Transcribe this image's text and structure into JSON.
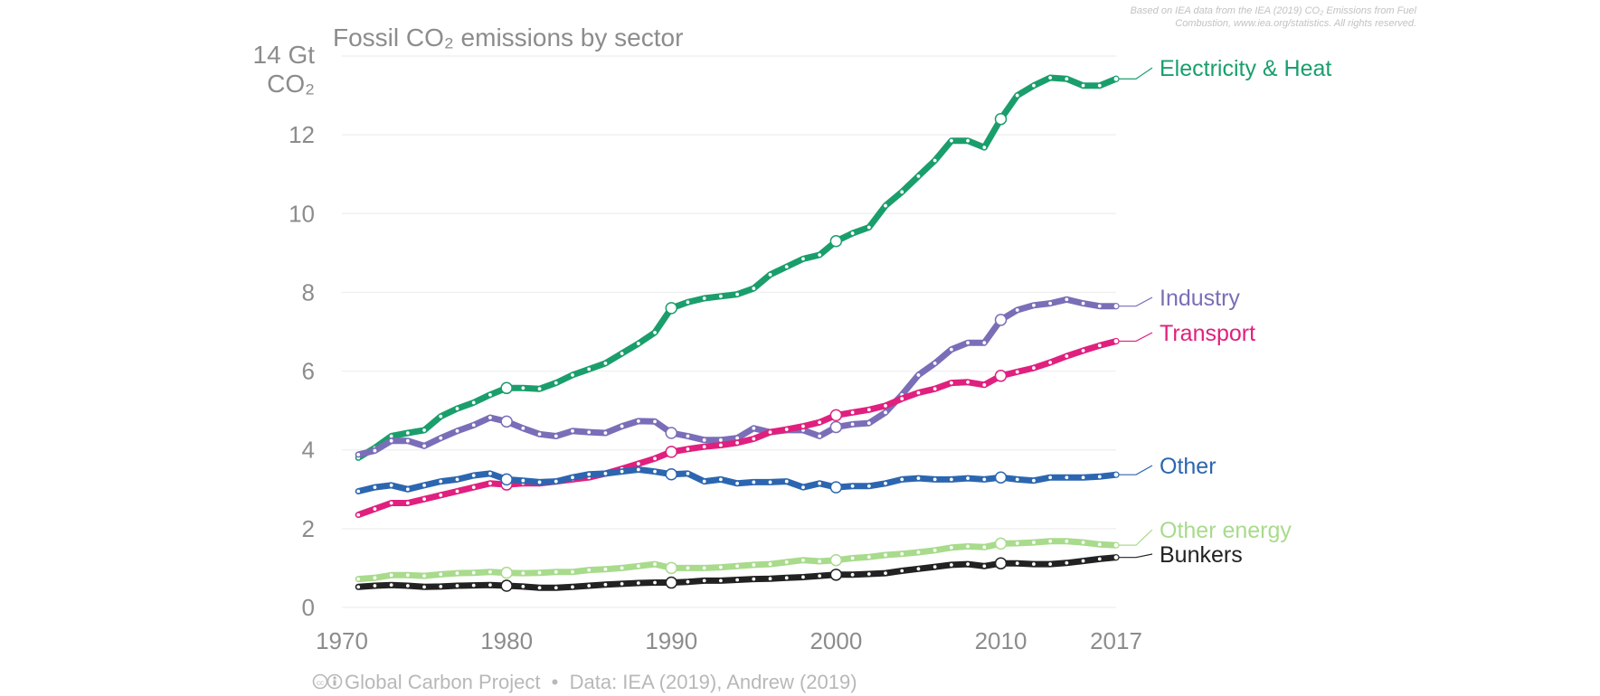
{
  "chart_data": {
    "type": "line",
    "title": "Fossil CO₂ emissions by sector",
    "ylabel_line1": "14 Gt",
    "ylabel_line2": "CO₂",
    "ylim": [
      0,
      14
    ],
    "yticks": [
      0,
      2,
      4,
      6,
      8,
      10,
      12
    ],
    "xlim": [
      1970,
      2017
    ],
    "xticks": [
      1970,
      1980,
      1990,
      2000,
      2010,
      2017
    ],
    "grid": true,
    "legend": "right, inline labels at line ends",
    "x_start": 1971,
    "x_end": 2017,
    "series": [
      {
        "name": "Electricity & Heat",
        "color": "#1a9e6c",
        "values": [
          3.8,
          4.05,
          4.35,
          4.43,
          4.5,
          4.85,
          5.05,
          5.2,
          5.4,
          5.57,
          5.57,
          5.55,
          5.7,
          5.9,
          6.05,
          6.2,
          6.45,
          6.7,
          6.98,
          7.6,
          7.75,
          7.85,
          7.9,
          7.95,
          8.1,
          8.45,
          8.65,
          8.85,
          8.95,
          9.3,
          9.5,
          9.65,
          10.2,
          10.55,
          10.95,
          11.35,
          11.85,
          11.85,
          11.68,
          12.4,
          13.0,
          13.25,
          13.45,
          13.42,
          13.25,
          13.25,
          13.42
        ]
      },
      {
        "name": "Industry",
        "color": "#7a6eb8",
        "values": [
          3.88,
          3.98,
          4.23,
          4.23,
          4.1,
          4.3,
          4.48,
          4.63,
          4.82,
          4.72,
          4.55,
          4.4,
          4.35,
          4.48,
          4.45,
          4.43,
          4.6,
          4.73,
          4.72,
          4.43,
          4.35,
          4.25,
          4.25,
          4.3,
          4.55,
          4.45,
          4.5,
          4.5,
          4.35,
          4.58,
          4.65,
          4.68,
          4.95,
          5.4,
          5.9,
          6.2,
          6.55,
          6.72,
          6.72,
          7.3,
          7.55,
          7.67,
          7.72,
          7.82,
          7.72,
          7.65,
          7.65
        ]
      },
      {
        "name": "Transport",
        "color": "#e0207e",
        "values": [
          2.35,
          2.5,
          2.65,
          2.65,
          2.75,
          2.85,
          2.95,
          3.05,
          3.15,
          3.12,
          3.15,
          3.15,
          3.2,
          3.25,
          3.3,
          3.4,
          3.52,
          3.65,
          3.78,
          3.95,
          4.02,
          4.08,
          4.12,
          4.18,
          4.28,
          4.45,
          4.52,
          4.6,
          4.7,
          4.88,
          4.95,
          5.02,
          5.12,
          5.3,
          5.45,
          5.55,
          5.7,
          5.72,
          5.65,
          5.88,
          5.98,
          6.08,
          6.22,
          6.38,
          6.52,
          6.65,
          6.76
        ]
      },
      {
        "name": "Other",
        "color": "#2c66b0",
        "values": [
          2.95,
          3.05,
          3.1,
          3.0,
          3.1,
          3.2,
          3.25,
          3.35,
          3.4,
          3.25,
          3.22,
          3.18,
          3.2,
          3.3,
          3.38,
          3.4,
          3.45,
          3.5,
          3.45,
          3.38,
          3.4,
          3.2,
          3.25,
          3.15,
          3.18,
          3.18,
          3.2,
          3.05,
          3.15,
          3.05,
          3.08,
          3.08,
          3.15,
          3.25,
          3.28,
          3.25,
          3.25,
          3.28,
          3.25,
          3.3,
          3.25,
          3.22,
          3.3,
          3.3,
          3.3,
          3.32,
          3.37
        ]
      },
      {
        "name": "Other energy",
        "color": "#a8db8c",
        "values": [
          0.72,
          0.75,
          0.82,
          0.82,
          0.8,
          0.84,
          0.87,
          0.88,
          0.9,
          0.88,
          0.87,
          0.88,
          0.9,
          0.9,
          0.95,
          0.97,
          1.0,
          1.05,
          1.1,
          1.0,
          1.0,
          1.0,
          1.02,
          1.05,
          1.08,
          1.1,
          1.15,
          1.2,
          1.17,
          1.2,
          1.25,
          1.28,
          1.33,
          1.36,
          1.4,
          1.45,
          1.52,
          1.55,
          1.53,
          1.62,
          1.63,
          1.65,
          1.68,
          1.68,
          1.65,
          1.6,
          1.58
        ]
      },
      {
        "name": "Bunkers",
        "color": "#222222",
        "values": [
          0.52,
          0.55,
          0.57,
          0.55,
          0.52,
          0.53,
          0.55,
          0.56,
          0.57,
          0.55,
          0.53,
          0.5,
          0.5,
          0.52,
          0.55,
          0.58,
          0.6,
          0.62,
          0.63,
          0.63,
          0.65,
          0.68,
          0.68,
          0.7,
          0.72,
          0.73,
          0.75,
          0.77,
          0.8,
          0.83,
          0.83,
          0.85,
          0.87,
          0.93,
          0.98,
          1.03,
          1.08,
          1.1,
          1.05,
          1.12,
          1.12,
          1.1,
          1.1,
          1.13,
          1.18,
          1.23,
          1.27
        ]
      }
    ]
  },
  "source_note": {
    "line1": "Based on IEA data from the IEA (2019) CO₂ Emissions from Fuel",
    "line2": "Combustion, www.iea.org/statistics. All rights reserved."
  },
  "credit": {
    "cc_icon": "cc-by-icon",
    "text": "Global Carbon Project  •  Data: IEA (2019), Andrew (2019)"
  }
}
